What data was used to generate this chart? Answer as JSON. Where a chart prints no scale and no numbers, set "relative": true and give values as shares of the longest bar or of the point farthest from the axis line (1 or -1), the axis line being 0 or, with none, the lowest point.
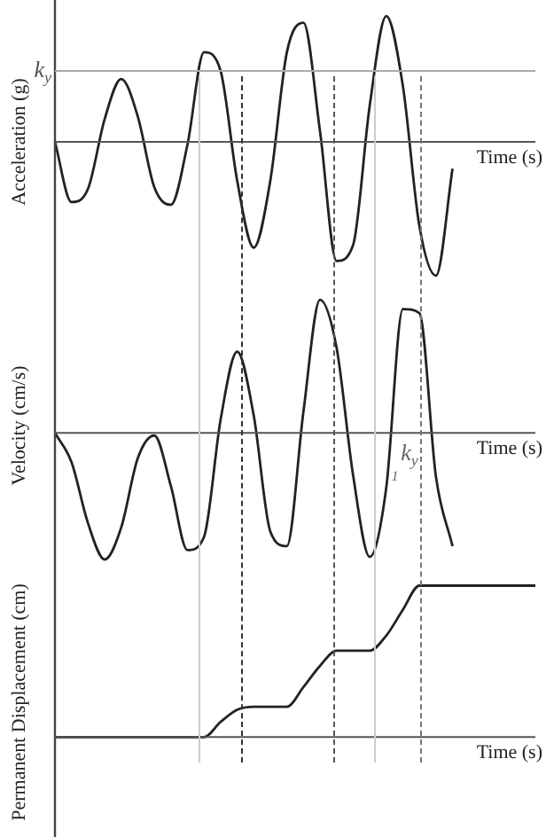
{
  "chart_data": [
    {
      "type": "line",
      "ylabel": "Acceleration (g)",
      "xlabel": "Time (s)",
      "relative": true,
      "marker": "none",
      "legend": false,
      "categories": [
        null,
        null,
        null,
        null,
        null,
        null,
        null,
        null,
        null,
        null,
        null,
        null,
        null,
        null,
        null,
        null,
        null,
        null,
        null,
        null,
        null,
        null,
        null,
        null,
        null,
        null,
        null,
        null,
        null,
        null
      ],
      "series": [
        {
          "color": "#222222",
          "values": [
            0,
            -0.45,
            -0.35,
            0.17,
            0.47,
            0.19,
            -0.34,
            -0.47,
            -0.02,
            0.67,
            0.53,
            -0.29,
            -0.79,
            -0.29,
            0.67,
            0.89,
            0.08,
            -0.89,
            -0.77,
            0.27,
            0.94,
            0.42,
            -0.63,
            -1,
            -0.2,
            null,
            null,
            null,
            null,
            null
          ]
        }
      ],
      "ref_lines": [
        {
          "axis": "y",
          "value": 0.53,
          "label": "k$_{y}$",
          "color": "#aaaaaa"
        }
      ]
    },
    {
      "type": "line",
      "ylabel": "Velocity (cm/s)",
      "xlabel": "Time (s)",
      "relative": true,
      "marker": "none",
      "legend": false,
      "categories": [
        null,
        null,
        null,
        null,
        null,
        null,
        null,
        null,
        null,
        null,
        null,
        null,
        null,
        null,
        null,
        null,
        null,
        null,
        null,
        null,
        null,
        null,
        null,
        null,
        null,
        null,
        null,
        null,
        null,
        null
      ],
      "series": [
        {
          "color": "#222222",
          "values": [
            0,
            -0.22,
            -0.68,
            -0.95,
            -0.71,
            -0.19,
            -0.02,
            -0.4,
            -0.88,
            -0.78,
            0.1,
            0.61,
            0.13,
            -0.74,
            -0.85,
            0.16,
            1,
            0.64,
            -0.32,
            -0.93,
            -0.41,
            0.93,
            0.9,
            -0.33,
            -0.85,
            null,
            null,
            null,
            null,
            null
          ]
        }
      ],
      "annotations": [
        "k$_{y}$",
        "1"
      ]
    },
    {
      "type": "line",
      "ylabel": "Permanent Displacement (cm)",
      "xlabel": "Time (s)",
      "relative": true,
      "marker": "none",
      "legend": false,
      "categories": [
        null,
        null,
        null,
        null,
        null,
        null,
        null,
        null,
        null,
        null,
        null,
        null,
        null,
        null,
        null,
        null,
        null,
        null,
        null,
        null,
        null,
        null,
        null,
        null,
        null,
        null,
        null,
        null,
        null,
        null
      ],
      "series": [
        {
          "color": "#222222",
          "values": [
            0,
            0,
            0,
            0,
            0,
            0,
            0,
            0,
            0,
            0,
            0.1,
            0.18,
            0.2,
            0.2,
            0.2,
            0.33,
            0.47,
            0.57,
            0.57,
            0.57,
            0.67,
            0.84,
            1,
            1,
            1,
            1,
            1,
            1,
            1,
            1
          ]
        }
      ]
    }
  ]
}
